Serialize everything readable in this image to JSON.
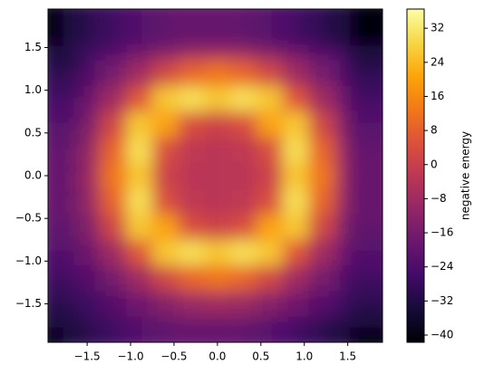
{
  "chart_data": {
    "type": "heatmap",
    "colormap": "inferno",
    "colorbar_label": "negative energy",
    "x": [
      -1.8,
      -1.5,
      -1.2,
      -0.9,
      -0.6,
      -0.3,
      0,
      0.3,
      0.6,
      0.9,
      1.2,
      1.5,
      1.8
    ],
    "y": [
      -1.8,
      -1.5,
      -1.2,
      -0.9,
      -0.6,
      -0.3,
      0,
      0.3,
      0.6,
      0.9,
      1.2,
      1.5,
      1.8
    ],
    "z": [
      [
        -40,
        -32,
        -28,
        -24,
        -21,
        -19,
        -19,
        -19,
        -21,
        -24,
        -28,
        -32,
        -40
      ],
      [
        -32,
        -27,
        -22,
        -17,
        -13,
        -9,
        -8,
        -9,
        -13,
        -17,
        -22,
        -27,
        -32
      ],
      [
        -28,
        -22,
        -16,
        -8,
        2,
        9,
        12,
        9,
        2,
        -8,
        -16,
        -22,
        -28
      ],
      [
        -24,
        -17,
        -8,
        6,
        26,
        30,
        26,
        30,
        26,
        6,
        -8,
        -17,
        -24
      ],
      [
        -21,
        -13,
        2,
        26,
        20,
        4,
        1,
        4,
        20,
        26,
        2,
        -13,
        -21
      ],
      [
        -19,
        -9,
        9,
        30,
        4,
        -2,
        -3,
        -2,
        4,
        30,
        9,
        -9,
        -19
      ],
      [
        -19,
        -8,
        12,
        26,
        1,
        -3,
        -3,
        -3,
        1,
        26,
        12,
        -8,
        -19
      ],
      [
        -19,
        -9,
        9,
        30,
        4,
        -2,
        -3,
        -2,
        4,
        30,
        9,
        -9,
        -19
      ],
      [
        -21,
        -13,
        2,
        26,
        20,
        4,
        1,
        4,
        20,
        26,
        2,
        -13,
        -21
      ],
      [
        -24,
        -17,
        -8,
        6,
        26,
        30,
        26,
        30,
        26,
        6,
        -8,
        -17,
        -24
      ],
      [
        -28,
        -22,
        -16,
        -8,
        2,
        9,
        12,
        9,
        2,
        -8,
        -16,
        -22,
        -28
      ],
      [
        -32,
        -27,
        -22,
        -17,
        -13,
        -9,
        -8,
        -9,
        -13,
        -17,
        -22,
        -27,
        -32
      ],
      [
        -40,
        -32,
        -28,
        -24,
        -21,
        -19,
        -19,
        -19,
        -21,
        -24,
        -28,
        -32,
        -40
      ]
    ],
    "xlim": [
      -1.95,
      1.9
    ],
    "ylim": [
      -1.95,
      1.95
    ],
    "xticks": [
      {
        "value": -1.5,
        "label": "−1.5"
      },
      {
        "value": -1,
        "label": "−1.0"
      },
      {
        "value": -0.5,
        "label": "−0.5"
      },
      {
        "value": 0,
        "label": "0.0"
      },
      0.5,
      {
        "value": 1,
        "label": "1.0"
      },
      1.5
    ],
    "yticks": [
      {
        "value": -1.5,
        "label": "−1.5"
      },
      {
        "value": -1,
        "label": "−1.0"
      },
      {
        "value": -0.5,
        "label": "−0.5"
      },
      {
        "value": 0,
        "label": "0.0"
      },
      0.5,
      {
        "value": 1,
        "label": "1.0"
      },
      1.5
    ],
    "clim": [
      -41.7,
      36.5
    ],
    "cticks": [
      {
        "value": -40,
        "label": "−40"
      },
      {
        "value": -32,
        "label": "−32"
      },
      {
        "value": -24,
        "label": "−24"
      },
      {
        "value": -16,
        "label": "−16"
      },
      {
        "value": -8,
        "label": "−8"
      },
      0,
      8,
      16,
      24,
      32
    ]
  }
}
